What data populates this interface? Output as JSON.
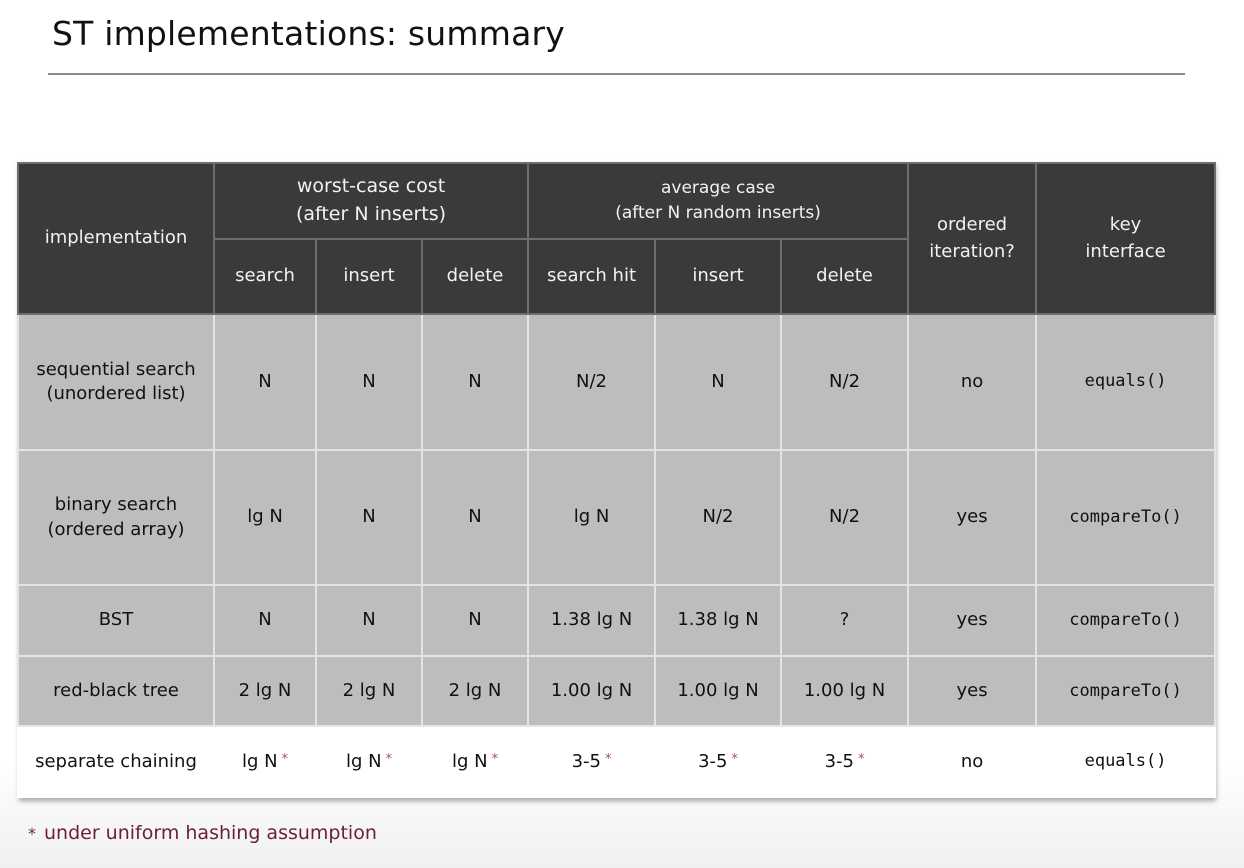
{
  "title": "ST implementations:  summary",
  "table": {
    "header": {
      "implementation": "implementation",
      "worst_group": "worst-case cost\n(after N inserts)",
      "avg_group": "average case\n(after N random inserts)",
      "ordered": "ordered\niteration?",
      "key_interface": "key\ninterface",
      "worst_cols": [
        "search",
        "insert",
        "delete"
      ],
      "avg_cols": [
        "search hit",
        "insert",
        "delete"
      ]
    },
    "rows": [
      {
        "name": "sequential search\n(unordered list)",
        "cells": [
          "N",
          "N",
          "N",
          "N/2",
          "N",
          "N/2",
          "no",
          "equals()"
        ]
      },
      {
        "name": "binary search\n(ordered array)",
        "cells": [
          "lg N",
          "N",
          "N",
          "lg N",
          "N/2",
          "N/2",
          "yes",
          "compareTo()"
        ]
      },
      {
        "name": "BST",
        "cells": [
          "N",
          "N",
          "N",
          "1.38 lg N",
          "1.38 lg N",
          "?",
          "yes",
          "compareTo()"
        ]
      },
      {
        "name": "red-black tree",
        "cells": [
          "2 lg N",
          "2 lg N",
          "2 lg N",
          "1.00 lg N",
          "1.00 lg N",
          "1.00 lg N",
          "yes",
          "compareTo()"
        ]
      },
      {
        "name": "separate chaining",
        "cells": [
          "lg N",
          "lg N",
          "lg N",
          "3-5",
          "3-5",
          "3-5",
          "no",
          "equals()"
        ]
      }
    ],
    "star": "*"
  },
  "footnote": {
    "star": "*",
    "text": "under uniform hashing assumption"
  }
}
